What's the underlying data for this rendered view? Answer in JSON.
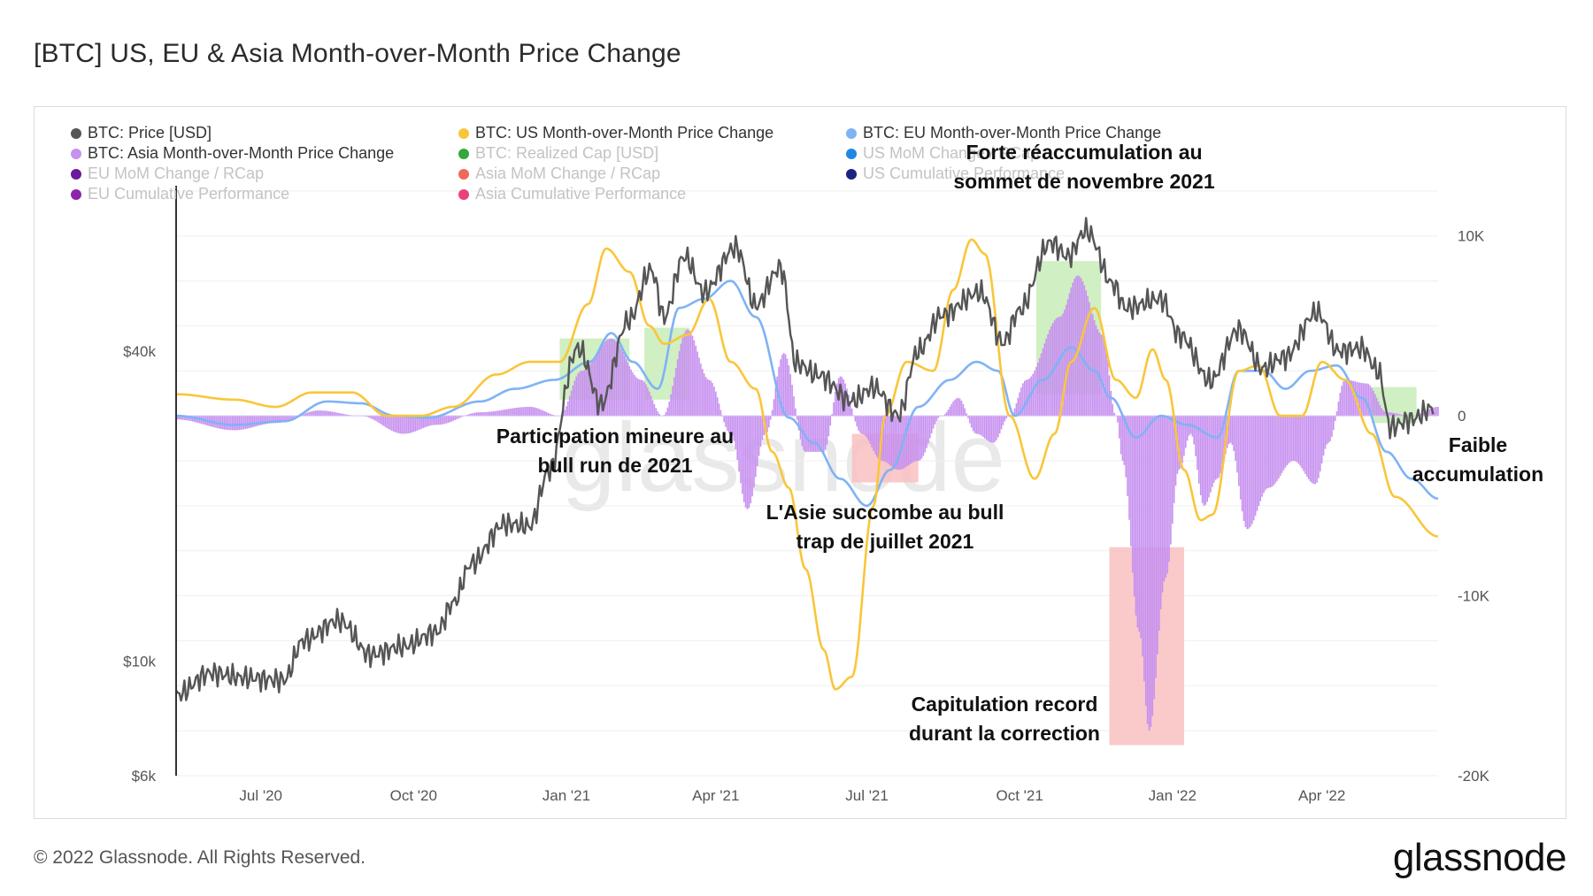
{
  "title": "[BTC] US, EU & Asia Month-over-Month Price Change",
  "legend": [
    {
      "label": "BTC: Price [USD]",
      "color": "#555555",
      "active": true
    },
    {
      "label": "BTC: US Month-over-Month Price Change",
      "color": "#f9c63a",
      "active": true
    },
    {
      "label": "BTC: EU Month-over-Month Price Change",
      "color": "#7fb3f5",
      "active": true
    },
    {
      "label": "BTC: Asia Month-over-Month Price Change",
      "color": "#c791f0",
      "active": true
    },
    {
      "label": "BTC: Realized Cap [USD]",
      "color": "#34a83a",
      "active": false
    },
    {
      "label": "US MoM Change / RCap",
      "color": "#1e88e5",
      "active": false
    },
    {
      "label": "EU MoM Change / RCap",
      "color": "#6a1b9a",
      "active": false
    },
    {
      "label": "Asia MoM Change / RCap",
      "color": "#ef6a5a",
      "active": false
    },
    {
      "label": "US Cumulative Performance",
      "color": "#1a237e",
      "active": false
    },
    {
      "label": "EU Cumulative Performance",
      "color": "#8e24aa",
      "active": false
    },
    {
      "label": "Asia Cumulative Performance",
      "color": "#ec407a",
      "active": false
    }
  ],
  "annotations": [
    {
      "lines": [
        "Participation mineure au",
        "bull run de 2021"
      ]
    },
    {
      "lines": [
        "L'Asie succombe au bull",
        "trap de juillet 2021"
      ]
    },
    {
      "lines": [
        "Forte réaccumulation au",
        "sommet de novembre 2021"
      ]
    },
    {
      "lines": [
        "Capitulation record",
        "durant la correction"
      ]
    },
    {
      "lines": [
        "Faible",
        "accumulation"
      ]
    }
  ],
  "watermark": "glassnode",
  "footer": {
    "copyright": "© 2022 Glassnode. All Rights Reserved.",
    "brand": "glassnode"
  },
  "colors": {
    "price": "#555555",
    "us": "#f9c63a",
    "eu": "#7fb3f5",
    "asia": "#c791f0",
    "green_box": "#c8ecb9",
    "red_box": "#f9c0c0"
  },
  "chart_data": {
    "type": "line",
    "x_range": [
      "2020-05-11",
      "2022-06-10"
    ],
    "x_ticks": [
      {
        "date": "2020-07-01",
        "label": "Jul '20"
      },
      {
        "date": "2020-10-01",
        "label": "Oct '20"
      },
      {
        "date": "2021-01-01",
        "label": "Jan '21"
      },
      {
        "date": "2021-04-01",
        "label": "Apr '21"
      },
      {
        "date": "2021-07-01",
        "label": "Jul '21"
      },
      {
        "date": "2021-10-01",
        "label": "Oct '21"
      },
      {
        "date": "2022-01-01",
        "label": "Jan '22"
      },
      {
        "date": "2022-04-01",
        "label": "Apr '22"
      }
    ],
    "y_left": {
      "scale": "log",
      "range": [
        6000,
        100000
      ],
      "ticks": [
        {
          "value": 6000,
          "label": "$6k"
        },
        {
          "value": 10000,
          "label": "$10k"
        },
        {
          "value": 40000,
          "label": "$40k"
        }
      ]
    },
    "y_right": {
      "scale": "linear",
      "range": [
        -20000,
        15000
      ],
      "ticks": [
        {
          "value": 10000,
          "label": "10K"
        },
        {
          "value": 0,
          "label": "0"
        },
        {
          "value": -10000,
          "label": "-10K"
        },
        {
          "value": -20000,
          "label": "-20K"
        }
      ]
    },
    "series": [
      {
        "name": "BTC: Price [USD]",
        "axis": "left",
        "points": [
          [
            "2020-05-11",
            8600
          ],
          [
            "2020-06-01",
            9500
          ],
          [
            "2020-06-20",
            9300
          ],
          [
            "2020-07-15",
            9200
          ],
          [
            "2020-07-27",
            11000
          ],
          [
            "2020-08-17",
            12000
          ],
          [
            "2020-09-05",
            10300
          ],
          [
            "2020-09-25",
            10700
          ],
          [
            "2020-10-15",
            11400
          ],
          [
            "2020-10-25",
            13000
          ],
          [
            "2020-11-05",
            15500
          ],
          [
            "2020-11-25",
            18500
          ],
          [
            "2020-12-10",
            18300
          ],
          [
            "2020-12-22",
            23500
          ],
          [
            "2021-01-08",
            40500
          ],
          [
            "2021-01-22",
            31500
          ],
          [
            "2021-02-08",
            46000
          ],
          [
            "2021-02-21",
            57500
          ],
          [
            "2021-03-01",
            46500
          ],
          [
            "2021-03-13",
            61000
          ],
          [
            "2021-03-25",
            52000
          ],
          [
            "2021-04-13",
            63500
          ],
          [
            "2021-04-25",
            49000
          ],
          [
            "2021-05-10",
            58000
          ],
          [
            "2021-05-19",
            38000
          ],
          [
            "2021-06-01",
            36000
          ],
          [
            "2021-06-22",
            32000
          ],
          [
            "2021-07-05",
            34000
          ],
          [
            "2021-07-20",
            30000
          ],
          [
            "2021-08-01",
            40000
          ],
          [
            "2021-08-15",
            47000
          ],
          [
            "2021-09-07",
            52000
          ],
          [
            "2021-09-21",
            41500
          ],
          [
            "2021-10-01",
            48000
          ],
          [
            "2021-10-20",
            65000
          ],
          [
            "2021-10-30",
            61000
          ],
          [
            "2021-11-10",
            68500
          ],
          [
            "2021-11-26",
            54000
          ],
          [
            "2021-12-04",
            48500
          ],
          [
            "2021-12-25",
            50500
          ],
          [
            "2022-01-05",
            43000
          ],
          [
            "2022-01-24",
            35000
          ],
          [
            "2022-02-10",
            44000
          ],
          [
            "2022-02-24",
            37000
          ],
          [
            "2022-03-10",
            39000
          ],
          [
            "2022-03-29",
            47500
          ],
          [
            "2022-04-11",
            40000
          ],
          [
            "2022-04-25",
            40500
          ],
          [
            "2022-05-05",
            36500
          ],
          [
            "2022-05-12",
            28500
          ],
          [
            "2022-05-25",
            29500
          ],
          [
            "2022-06-07",
            31000
          ]
        ]
      },
      {
        "name": "BTC: US Month-over-Month Price Change",
        "axis": "right",
        "points": [
          [
            "2020-05-11",
            1200
          ],
          [
            "2020-06-15",
            900
          ],
          [
            "2020-07-10",
            500
          ],
          [
            "2020-08-01",
            1300
          ],
          [
            "2020-08-25",
            1300
          ],
          [
            "2020-09-15",
            0
          ],
          [
            "2020-10-05",
            0
          ],
          [
            "2020-10-25",
            500
          ],
          [
            "2020-11-20",
            2300
          ],
          [
            "2020-12-10",
            3000
          ],
          [
            "2020-12-28",
            3000
          ],
          [
            "2021-01-14",
            6200
          ],
          [
            "2021-01-25",
            9300
          ],
          [
            "2021-02-08",
            8000
          ],
          [
            "2021-02-20",
            5000
          ],
          [
            "2021-03-01",
            4000
          ],
          [
            "2021-03-15",
            4500
          ],
          [
            "2021-03-28",
            6500
          ],
          [
            "2021-04-10",
            3000
          ],
          [
            "2021-04-25",
            1500
          ],
          [
            "2021-05-05",
            -2000
          ],
          [
            "2021-05-15",
            -4000
          ],
          [
            "2021-05-25",
            -8500
          ],
          [
            "2021-06-05",
            -13000
          ],
          [
            "2021-06-12",
            -15200
          ],
          [
            "2021-06-22",
            -14500
          ],
          [
            "2021-07-05",
            -5000
          ],
          [
            "2021-07-12",
            0
          ],
          [
            "2021-07-25",
            3000
          ],
          [
            "2021-08-10",
            2500
          ],
          [
            "2021-08-22",
            7000
          ],
          [
            "2021-09-02",
            9800
          ],
          [
            "2021-09-10",
            9000
          ],
          [
            "2021-09-25",
            0
          ],
          [
            "2021-10-10",
            -3500
          ],
          [
            "2021-10-22",
            -1000
          ],
          [
            "2021-11-01",
            3000
          ],
          [
            "2021-11-15",
            6000
          ],
          [
            "2021-11-28",
            2000
          ],
          [
            "2021-12-10",
            1000
          ],
          [
            "2021-12-20",
            3700
          ],
          [
            "2021-12-28",
            2000
          ],
          [
            "2022-01-08",
            -3000
          ],
          [
            "2022-01-18",
            -5800
          ],
          [
            "2022-01-25",
            -5500
          ],
          [
            "2022-02-10",
            2500
          ],
          [
            "2022-02-22",
            2800
          ],
          [
            "2022-03-07",
            0
          ],
          [
            "2022-03-20",
            0
          ],
          [
            "2022-04-01",
            3000
          ],
          [
            "2022-04-15",
            2000
          ],
          [
            "2022-05-01",
            -1000
          ],
          [
            "2022-05-15",
            -4500
          ],
          [
            "2022-06-10",
            -6700
          ]
        ]
      },
      {
        "name": "BTC: EU Month-over-Month Price Change",
        "axis": "right",
        "points": [
          [
            "2020-05-11",
            0
          ],
          [
            "2020-06-15",
            -500
          ],
          [
            "2020-07-15",
            -300
          ],
          [
            "2020-08-10",
            800
          ],
          [
            "2020-08-30",
            700
          ],
          [
            "2020-09-20",
            0
          ],
          [
            "2020-10-10",
            -100
          ],
          [
            "2020-11-10",
            800
          ],
          [
            "2020-12-01",
            1500
          ],
          [
            "2020-12-25",
            2000
          ],
          [
            "2021-01-15",
            3000
          ],
          [
            "2021-01-28",
            4600
          ],
          [
            "2021-02-10",
            3000
          ],
          [
            "2021-02-25",
            1500
          ],
          [
            "2021-03-10",
            6000
          ],
          [
            "2021-03-25",
            6500
          ],
          [
            "2021-04-10",
            7500
          ],
          [
            "2021-04-25",
            5500
          ],
          [
            "2021-05-15",
            -100
          ],
          [
            "2021-05-30",
            -1500
          ],
          [
            "2021-06-15",
            -3500
          ],
          [
            "2021-07-01",
            -5000
          ],
          [
            "2021-07-15",
            -3000
          ],
          [
            "2021-08-01",
            500
          ],
          [
            "2021-08-20",
            2000
          ],
          [
            "2021-09-05",
            3000
          ],
          [
            "2021-09-18",
            2500
          ],
          [
            "2021-09-28",
            0
          ],
          [
            "2021-10-15",
            2000
          ],
          [
            "2021-11-01",
            3800
          ],
          [
            "2021-11-15",
            2500
          ],
          [
            "2021-11-25",
            1000
          ],
          [
            "2021-12-10",
            -1200
          ],
          [
            "2021-12-25",
            0
          ],
          [
            "2022-01-10",
            -500
          ],
          [
            "2022-01-28",
            -1200
          ],
          [
            "2022-02-10",
            2500
          ],
          [
            "2022-02-25",
            2500
          ],
          [
            "2022-03-10",
            1500
          ],
          [
            "2022-03-25",
            2500
          ],
          [
            "2022-04-10",
            2800
          ],
          [
            "2022-04-25",
            1000
          ],
          [
            "2022-05-10",
            -2000
          ],
          [
            "2022-05-25",
            -3500
          ],
          [
            "2022-06-10",
            -4600
          ]
        ]
      },
      {
        "name": "BTC: Asia Month-over-Month Price Change",
        "axis": "right",
        "points": [
          [
            "2020-05-11",
            -200
          ],
          [
            "2020-06-15",
            -800
          ],
          [
            "2020-07-10",
            -400
          ],
          [
            "2020-08-05",
            300
          ],
          [
            "2020-08-30",
            0
          ],
          [
            "2020-09-25",
            -1000
          ],
          [
            "2020-10-15",
            -500
          ],
          [
            "2020-11-10",
            200
          ],
          [
            "2020-12-10",
            500
          ],
          [
            "2020-12-28",
            0
          ],
          [
            "2021-01-10",
            2500
          ],
          [
            "2021-01-28",
            4300
          ],
          [
            "2021-02-15",
            2000
          ],
          [
            "2021-02-28",
            0
          ],
          [
            "2021-03-15",
            4800
          ],
          [
            "2021-03-28",
            2000
          ],
          [
            "2021-04-10",
            -1000
          ],
          [
            "2021-04-20",
            -5200
          ],
          [
            "2021-05-01",
            -1000
          ],
          [
            "2021-05-12",
            3500
          ],
          [
            "2021-05-25",
            -2000
          ],
          [
            "2021-06-05",
            -2000
          ],
          [
            "2021-06-15",
            2200
          ],
          [
            "2021-06-28",
            -1000
          ],
          [
            "2021-07-10",
            -2500
          ],
          [
            "2021-07-20",
            -3000
          ],
          [
            "2021-08-01",
            -2500
          ],
          [
            "2021-08-15",
            0
          ],
          [
            "2021-08-25",
            1000
          ],
          [
            "2021-09-05",
            -1000
          ],
          [
            "2021-09-15",
            -1500
          ],
          [
            "2021-09-25",
            0
          ],
          [
            "2021-10-05",
            2000
          ],
          [
            "2021-10-25",
            5500
          ],
          [
            "2021-11-05",
            7800
          ],
          [
            "2021-11-20",
            4500
          ],
          [
            "2021-11-28",
            0
          ],
          [
            "2021-12-02",
            -2500
          ],
          [
            "2021-12-12",
            -12000
          ],
          [
            "2021-12-18",
            -17500
          ],
          [
            "2021-12-28",
            -9000
          ],
          [
            "2022-01-05",
            -3000
          ],
          [
            "2022-01-12",
            -1000
          ],
          [
            "2022-01-20",
            -5000
          ],
          [
            "2022-01-28",
            -3500
          ],
          [
            "2022-02-05",
            -1500
          ],
          [
            "2022-02-15",
            -6300
          ],
          [
            "2022-02-28",
            -4000
          ],
          [
            "2022-03-15",
            -2500
          ],
          [
            "2022-03-28",
            -3800
          ],
          [
            "2022-04-05",
            -1500
          ],
          [
            "2022-04-15",
            2000
          ],
          [
            "2022-04-28",
            1800
          ],
          [
            "2022-05-10",
            200
          ],
          [
            "2022-05-25",
            0
          ],
          [
            "2022-06-10",
            500
          ]
        ]
      }
    ],
    "highlights": [
      {
        "type": "green",
        "x0": "2020-12-28",
        "x1": "2021-02-08",
        "y0": 900,
        "y1": 4300
      },
      {
        "type": "green",
        "x0": "2021-02-17",
        "x1": "2021-03-16",
        "y0": 900,
        "y1": 4900
      },
      {
        "type": "red",
        "x0": "2021-06-22",
        "x1": "2021-08-01",
        "y0": -1000,
        "y1": -3700
      },
      {
        "type": "green",
        "x0": "2021-10-11",
        "x1": "2021-11-19",
        "y0": 1200,
        "y1": 8600
      },
      {
        "type": "red",
        "x0": "2021-11-24",
        "x1": "2022-01-08",
        "y0": -7300,
        "y1": -18300
      },
      {
        "type": "green",
        "x0": "2022-05-01",
        "x1": "2022-05-28",
        "y0": -400,
        "y1": 1600
      }
    ]
  }
}
